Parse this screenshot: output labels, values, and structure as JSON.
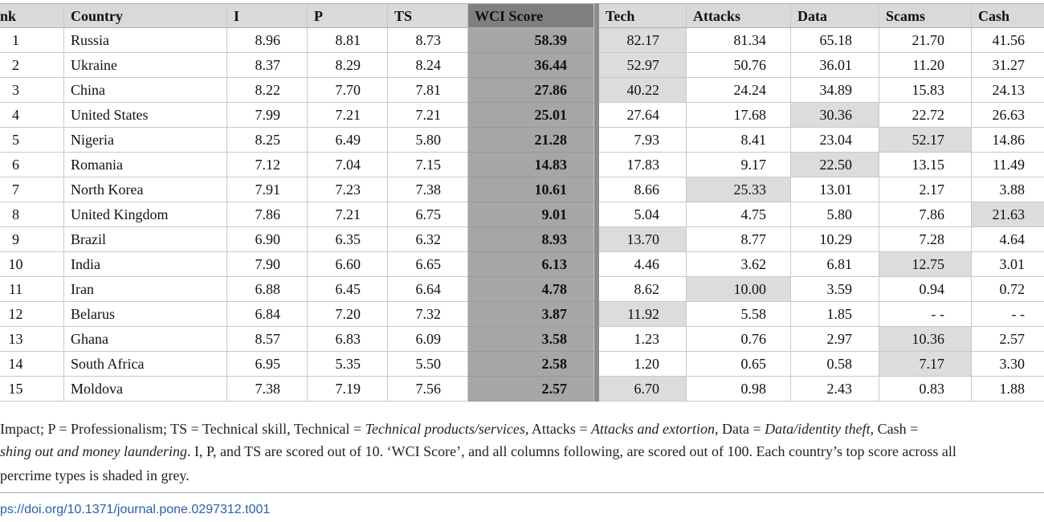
{
  "table": {
    "header": [
      "nk",
      "Country",
      "I",
      "P",
      "TS",
      "WCI Score",
      "Tech",
      "Attacks",
      "Data",
      "Scams",
      "Cash"
    ],
    "rows": [
      [
        "1",
        "Russia",
        "8.96",
        "8.81",
        "8.73",
        "58.39",
        "82.17",
        "81.34",
        "65.18",
        "21.70",
        "41.56"
      ],
      [
        "2",
        "Ukraine",
        "8.37",
        "8.29",
        "8.24",
        "36.44",
        "52.97",
        "50.76",
        "36.01",
        "11.20",
        "31.27"
      ],
      [
        "3",
        "China",
        "8.22",
        "7.70",
        "7.81",
        "27.86",
        "40.22",
        "24.24",
        "34.89",
        "15.83",
        "24.13"
      ],
      [
        "4",
        "United States",
        "7.99",
        "7.21",
        "7.21",
        "25.01",
        "27.64",
        "17.68",
        "30.36",
        "22.72",
        "26.63"
      ],
      [
        "5",
        "Nigeria",
        "8.25",
        "6.49",
        "5.80",
        "21.28",
        "7.93",
        "8.41",
        "23.04",
        "52.17",
        "14.86"
      ],
      [
        "6",
        "Romania",
        "7.12",
        "7.04",
        "7.15",
        "14.83",
        "17.83",
        "9.17",
        "22.50",
        "13.15",
        "11.49"
      ],
      [
        "7",
        "North Korea",
        "7.91",
        "7.23",
        "7.38",
        "10.61",
        "8.66",
        "25.33",
        "13.01",
        "2.17",
        "3.88"
      ],
      [
        "8",
        "United Kingdom",
        "7.86",
        "7.21",
        "6.75",
        "9.01",
        "5.04",
        "4.75",
        "5.80",
        "7.86",
        "21.63"
      ],
      [
        "9",
        "Brazil",
        "6.90",
        "6.35",
        "6.32",
        "8.93",
        "13.70",
        "8.77",
        "10.29",
        "7.28",
        "4.64"
      ],
      [
        "10",
        "India",
        "7.90",
        "6.60",
        "6.65",
        "6.13",
        "4.46",
        "3.62",
        "6.81",
        "12.75",
        "3.01"
      ],
      [
        "11",
        "Iran",
        "6.88",
        "6.45",
        "6.64",
        "4.78",
        "8.62",
        "10.00",
        "3.59",
        "0.94",
        "0.72"
      ],
      [
        "12",
        "Belarus",
        "6.84",
        "7.20",
        "7.32",
        "3.87",
        "11.92",
        "5.58",
        "1.85",
        "- -",
        "- -"
      ],
      [
        "13",
        "Ghana",
        "8.57",
        "6.83",
        "6.09",
        "3.58",
        "1.23",
        "0.76",
        "2.97",
        "10.36",
        "2.57"
      ],
      [
        "14",
        "South Africa",
        "6.95",
        "5.35",
        "5.50",
        "2.58",
        "1.20",
        "0.65",
        "0.58",
        "7.17",
        "3.30"
      ],
      [
        "15",
        "Moldova",
        "7.38",
        "7.19",
        "7.56",
        "2.57",
        "6.70",
        "0.98",
        "2.43",
        "0.83",
        "1.88"
      ]
    ],
    "shaded": [
      6,
      6,
      6,
      8,
      9,
      8,
      7,
      10,
      6,
      9,
      7,
      6,
      9,
      9,
      6
    ]
  },
  "footnote": [
    [
      {
        "text": "Impact; P = Professionalism; TS = Technical skill, Technical = ",
        "italic": false
      },
      {
        "text": "Technical products/services",
        "italic": true
      },
      {
        "text": ", Attacks = ",
        "italic": false
      },
      {
        "text": "Attacks and extortion",
        "italic": true
      },
      {
        "text": ", Data = ",
        "italic": false
      },
      {
        "text": "Data/identity theft",
        "italic": true
      },
      {
        "text": ", Cash =",
        "italic": false
      }
    ],
    [
      {
        "text": "shing out and money laundering",
        "italic": true
      },
      {
        "text": ". I, P, and TS are scored out of 10. ‘WCI Score’, and all columns following, are scored out of 100. Each country’s top score across all",
        "italic": false
      }
    ],
    [
      {
        "text": "percrime types is shaded in grey.",
        "italic": false
      }
    ]
  ],
  "link": "ps://doi.org/10.1371/journal.pone.0297312.t001"
}
